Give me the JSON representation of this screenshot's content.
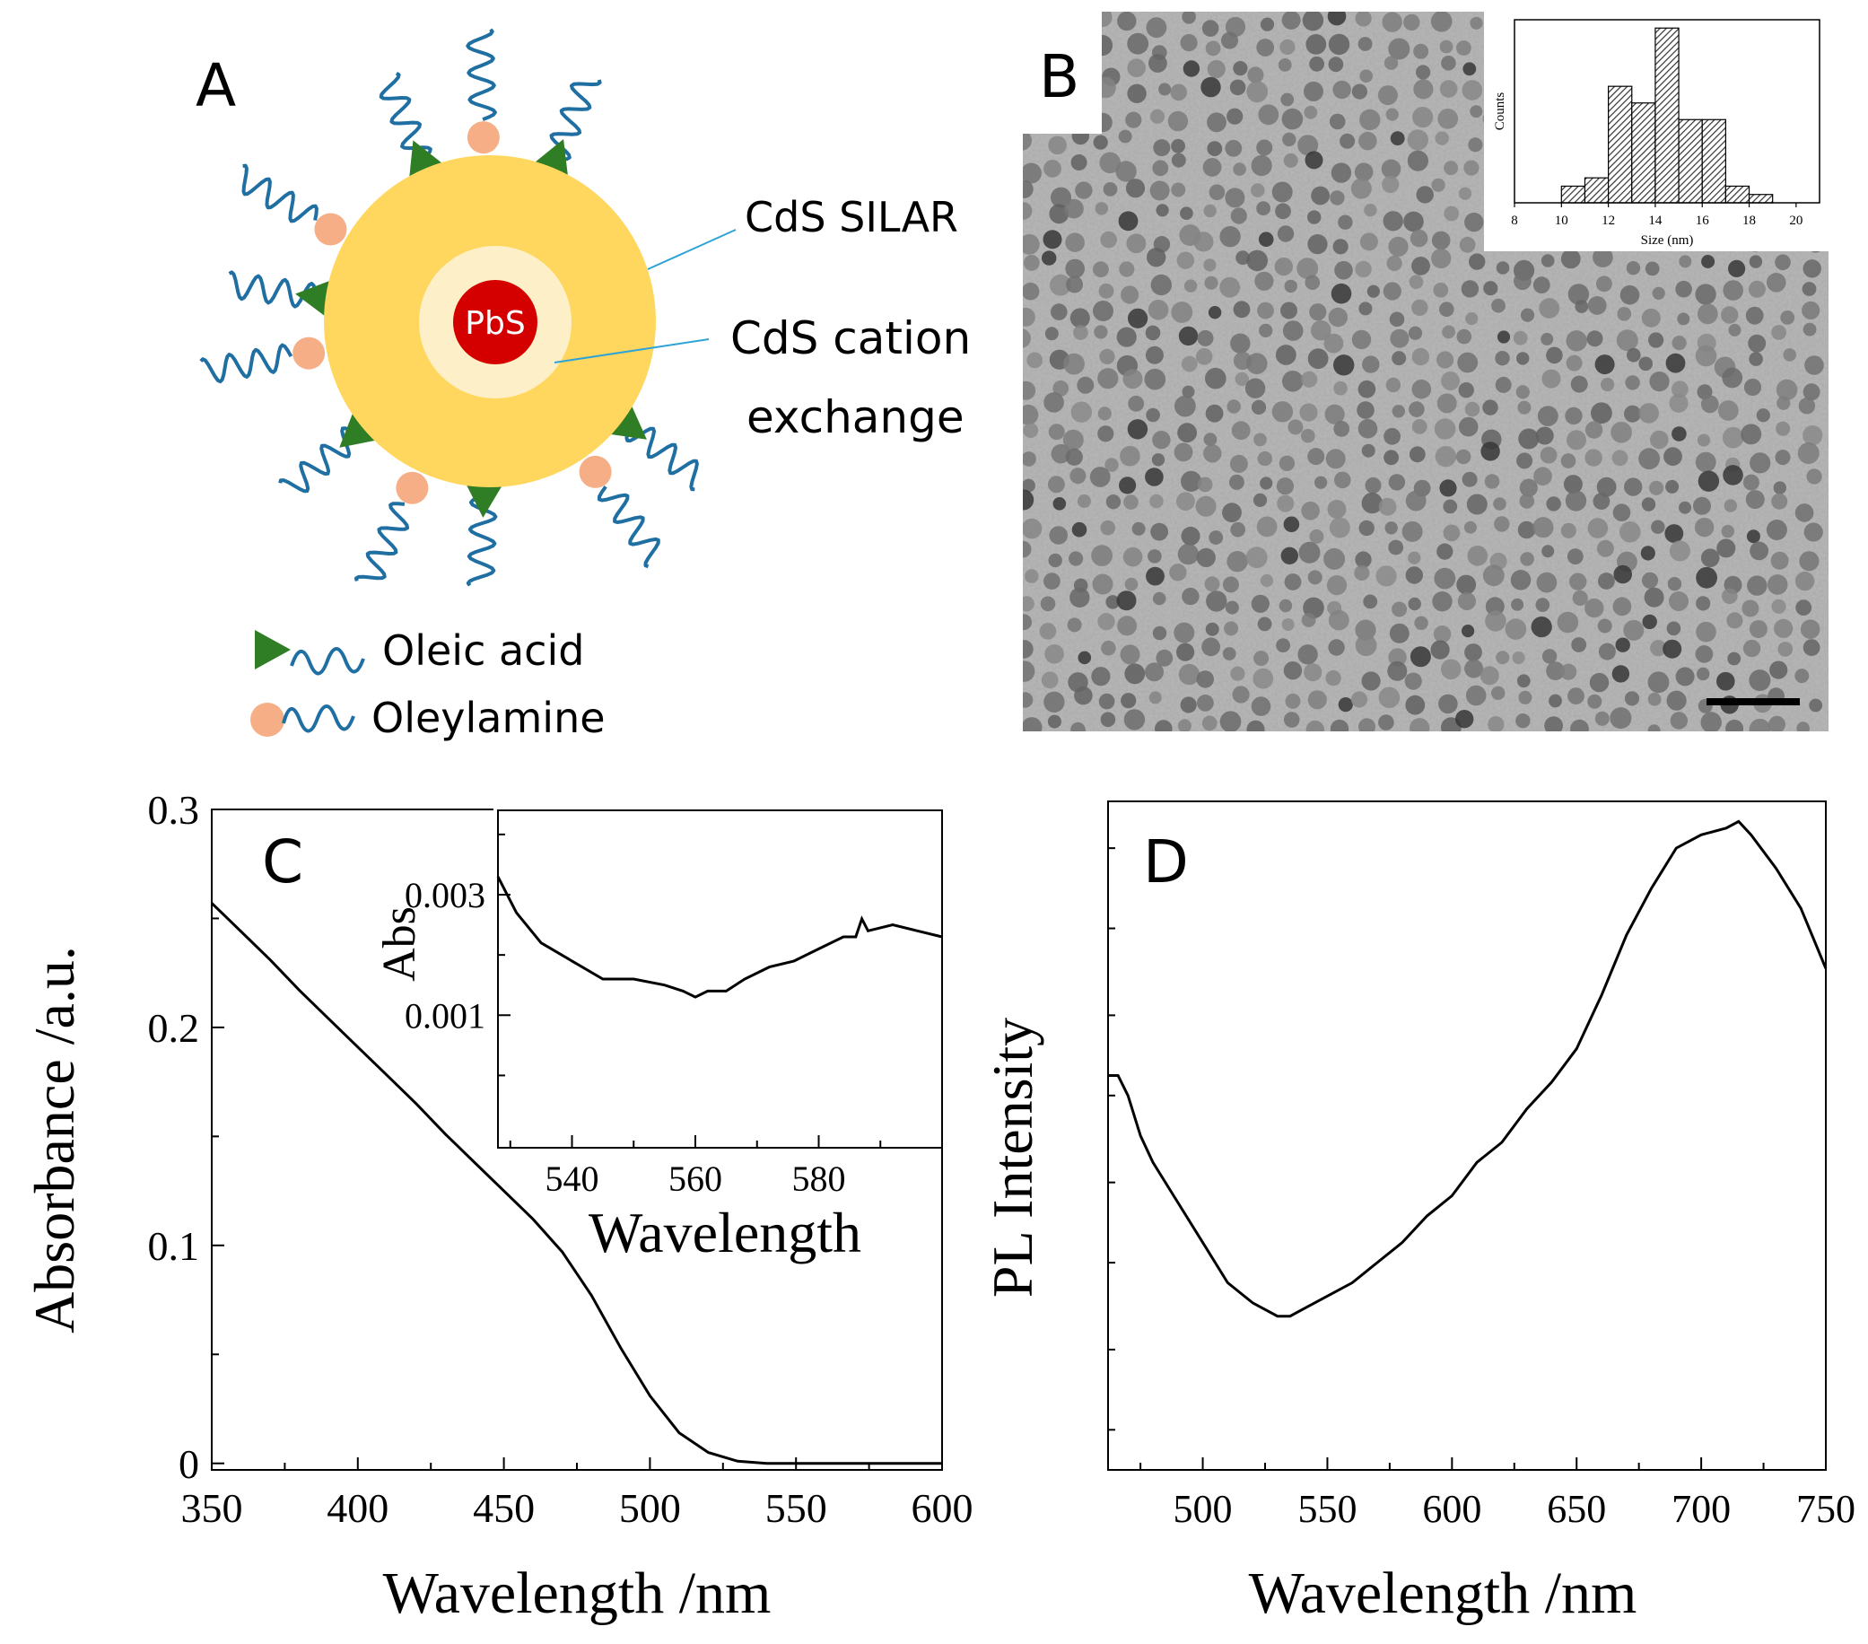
{
  "panels": {
    "a": {
      "label": "A",
      "core_label": "PbS",
      "silar_label": "CdS SILAR",
      "cation_exchange_line1": "CdS cation",
      "cation_exchange_line2": "exchange",
      "legend_oleic": "Oleic acid",
      "legend_oleylamine": "Oleylamine",
      "colors": {
        "core": "#d40000",
        "inner_shell": "#fdf0c8",
        "outer_shell": "#ffd75e",
        "oleic_head": "#2f7d24",
        "amine_head": "#f6ae86",
        "chain": "#1f6fa3",
        "leader": "#2ea3d6"
      },
      "ligand_icons": [
        "oleic-acid-triangle-icon",
        "oleylamine-circle-icon"
      ]
    },
    "b": {
      "label": "B",
      "micrograph": "tem-image",
      "histogram": {
        "type": "bar",
        "x": [
          10.5,
          11.5,
          12.5,
          13.5,
          14.5,
          15.5,
          16.5,
          17.5,
          18.5
        ],
        "values": [
          2,
          3,
          14,
          12,
          21,
          10,
          10,
          2,
          1
        ],
        "bin_width": 1,
        "xlim": [
          8,
          21
        ],
        "ylim": [
          0,
          22
        ],
        "xticks": [
          8,
          10,
          12,
          14,
          16,
          18,
          20
        ],
        "xlabel": "Size (nm)",
        "ylabel": "Counts"
      }
    },
    "c": {
      "label": "C",
      "inset_label": "Abs"
    },
    "d": {
      "label": "D"
    }
  },
  "chart_data": [
    {
      "id": "absorbance",
      "type": "line",
      "xlabel": "Wavelength /nm",
      "ylabel": "Absorbance /a.u.",
      "xlim": [
        350,
        600
      ],
      "ylim": [
        -0.003,
        0.3
      ],
      "xticks": [
        350,
        400,
        450,
        500,
        550,
        600
      ],
      "yticks": [
        0,
        0.1,
        0.2,
        0.3
      ],
      "ytick_labels": [
        "0",
        "0.1",
        "0.2",
        "0.3"
      ],
      "series": [
        {
          "name": "absorbance",
          "x": [
            350,
            360,
            370,
            380,
            390,
            400,
            410,
            420,
            430,
            440,
            450,
            460,
            470,
            480,
            490,
            500,
            510,
            520,
            530,
            540,
            550,
            560,
            570,
            580,
            590,
            600
          ],
          "y": [
            0.257,
            0.244,
            0.231,
            0.217,
            0.204,
            0.191,
            0.178,
            0.165,
            0.151,
            0.138,
            0.125,
            0.112,
            0.097,
            0.077,
            0.053,
            0.031,
            0.014,
            0.005,
            0.001,
            0.0,
            0.0,
            0.0,
            0.0,
            0.0,
            0.0,
            0.0
          ]
        }
      ]
    },
    {
      "id": "absorbance-inset",
      "type": "line",
      "xlabel": "Wavelength",
      "ylabel": "Abs",
      "xlim": [
        528,
        600
      ],
      "ylim": [
        -0.0012,
        0.0044
      ],
      "xticks": [
        540,
        560,
        580
      ],
      "yticks": [
        0.001,
        0.003
      ],
      "ytick_labels": [
        "0.001",
        "0.003"
      ],
      "series": [
        {
          "name": "absorbance (zoom)",
          "x": [
            528,
            531,
            535,
            540,
            545,
            550,
            555,
            558,
            560,
            562,
            565,
            568,
            572,
            576,
            580,
            584,
            586,
            587,
            588,
            592,
            596,
            600
          ],
          "y": [
            0.0033,
            0.0027,
            0.0022,
            0.0019,
            0.0016,
            0.0016,
            0.0015,
            0.0014,
            0.0013,
            0.0014,
            0.0014,
            0.0016,
            0.0018,
            0.0019,
            0.0021,
            0.0023,
            0.0023,
            0.0026,
            0.0024,
            0.0025,
            0.0024,
            0.0023
          ]
        }
      ]
    },
    {
      "id": "photoluminescence",
      "type": "line",
      "xlabel": "Wavelength /nm",
      "ylabel": "PL Intensity",
      "xlim": [
        462,
        750
      ],
      "ylim": [
        0,
        100
      ],
      "xticks": [
        500,
        550,
        600,
        650,
        700,
        750
      ],
      "series": [
        {
          "name": "PL",
          "x": [
            462,
            466,
            470,
            475,
            480,
            490,
            500,
            510,
            520,
            530,
            535,
            540,
            550,
            560,
            570,
            580,
            590,
            600,
            610,
            620,
            630,
            640,
            650,
            660,
            670,
            680,
            690,
            700,
            710,
            715,
            720,
            730,
            740,
            750
          ],
          "y": [
            59,
            59,
            56,
            50,
            46,
            40,
            34,
            28,
            25,
            23,
            23,
            24,
            26,
            28,
            31,
            34,
            38,
            41,
            46,
            49,
            54,
            58,
            63,
            71,
            80,
            87,
            93,
            95,
            96,
            97,
            95,
            90,
            84,
            75
          ]
        }
      ]
    }
  ]
}
